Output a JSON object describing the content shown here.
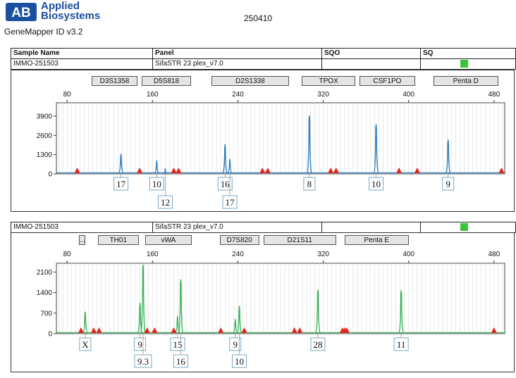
{
  "header": {
    "brand": [
      "Applied",
      "Biosystems"
    ],
    "software": "GeneMapper ID v3.2",
    "run_id": "250410"
  },
  "table": {
    "col_sample": "Sample Name",
    "col_panel": "Panel",
    "col_sqo": "SQO",
    "col_sq": "SQ"
  },
  "colors": {
    "blue": "#2f7fc0",
    "green": "#3cb45a",
    "marker": "#e2231a",
    "sq": "#3bc43b"
  },
  "panels": [
    {
      "sample": "IMMO-251503",
      "panel": "SifaSTR 23 plex_v7.0",
      "dye_color": "#2f7fc0",
      "loci": [
        {
          "name": "D3S1358",
          "start": 103,
          "end": 146
        },
        {
          "name": "D5S818",
          "start": 150,
          "end": 196
        },
        {
          "name": "D2S1338",
          "start": 215,
          "end": 288
        },
        {
          "name": "TPOX",
          "start": 300,
          "end": 350
        },
        {
          "name": "CSF1PO",
          "start": 354,
          "end": 406
        },
        {
          "name": "Penta D",
          "start": 423,
          "end": 484
        }
      ]
    },
    {
      "sample": "IMMO-251503",
      "panel": "SifaSTR 23 plex_v7.0",
      "dye_color": "#3cb45a",
      "loci": [
        {
          "name": "...",
          "start": 91,
          "end": 97
        },
        {
          "name": "TH01",
          "start": 109,
          "end": 147
        },
        {
          "name": "vWA",
          "start": 153,
          "end": 197
        },
        {
          "name": "D7S820",
          "start": 223,
          "end": 260
        },
        {
          "name": "D21S11",
          "start": 264,
          "end": 332
        },
        {
          "name": "Penta E",
          "start": 340,
          "end": 400
        }
      ]
    }
  ],
  "chart_data": [
    {
      "type": "line",
      "title": "",
      "xlabel": "",
      "ylabel": "",
      "xlim": [
        70,
        490
      ],
      "ylim": [
        0,
        4800
      ],
      "xticks": [
        80,
        160,
        240,
        320,
        400,
        480
      ],
      "yticks": [
        0,
        1300,
        2600,
        3900
      ],
      "grid": true,
      "peaks": [
        {
          "x": 130.5,
          "height": 1350
        },
        {
          "x": 164.0,
          "height": 900
        },
        {
          "x": 172.0,
          "height": 380
        },
        {
          "x": 228.0,
          "height": 2000
        },
        {
          "x": 232.5,
          "height": 1000
        },
        {
          "x": 307.0,
          "height": 3950
        },
        {
          "x": 369.5,
          "height": 3350
        },
        {
          "x": 437.0,
          "height": 2300
        }
      ],
      "allele_labels": [
        {
          "text": "17",
          "x": 130.5,
          "row": 1
        },
        {
          "text": "10",
          "x": 164.0,
          "row": 1
        },
        {
          "text": "12",
          "x": 172.0,
          "row": 2
        },
        {
          "text": "16",
          "x": 228.0,
          "row": 1
        },
        {
          "text": "17",
          "x": 232.5,
          "row": 2
        },
        {
          "text": "8",
          "x": 307.0,
          "row": 1
        },
        {
          "text": "10",
          "x": 369.5,
          "row": 1
        },
        {
          "text": "9",
          "x": 437.0,
          "row": 1
        }
      ],
      "markers": [
        89.5,
        148,
        180,
        184.5,
        263,
        268,
        327,
        332,
        391,
        408,
        487
      ]
    },
    {
      "type": "line",
      "title": "",
      "xlabel": "",
      "ylabel": "",
      "xlim": [
        70,
        490
      ],
      "ylim": [
        0,
        2400
      ],
      "xticks": [
        80,
        160,
        240,
        320,
        400,
        480
      ],
      "yticks": [
        0,
        700,
        1400,
        2100
      ],
      "grid": true,
      "peaks": [
        {
          "x": 97.0,
          "height": 750
        },
        {
          "x": 148.3,
          "height": 1050
        },
        {
          "x": 151.2,
          "height": 2350
        },
        {
          "x": 183.5,
          "height": 600
        },
        {
          "x": 186.5,
          "height": 1850
        },
        {
          "x": 237.6,
          "height": 500
        },
        {
          "x": 241.4,
          "height": 950
        },
        {
          "x": 315.0,
          "height": 1500
        },
        {
          "x": 393.0,
          "height": 1480
        }
      ],
      "allele_labels": [
        {
          "text": "X",
          "x": 97.0,
          "row": 1
        },
        {
          "text": "9",
          "x": 148.3,
          "row": 1
        },
        {
          "text": "9.3",
          "x": 151.2,
          "row": 2
        },
        {
          "text": "15",
          "x": 183.5,
          "row": 1
        },
        {
          "text": "16",
          "x": 186.5,
          "row": 2
        },
        {
          "text": "9",
          "x": 237.6,
          "row": 1
        },
        {
          "text": "10",
          "x": 241.4,
          "row": 2
        },
        {
          "text": "28",
          "x": 315.0,
          "row": 1
        },
        {
          "text": "11",
          "x": 393.0,
          "row": 1
        }
      ],
      "markers": [
        93,
        105,
        110,
        155,
        162,
        180,
        224,
        246,
        293,
        298,
        338,
        340,
        342,
        480
      ]
    }
  ]
}
